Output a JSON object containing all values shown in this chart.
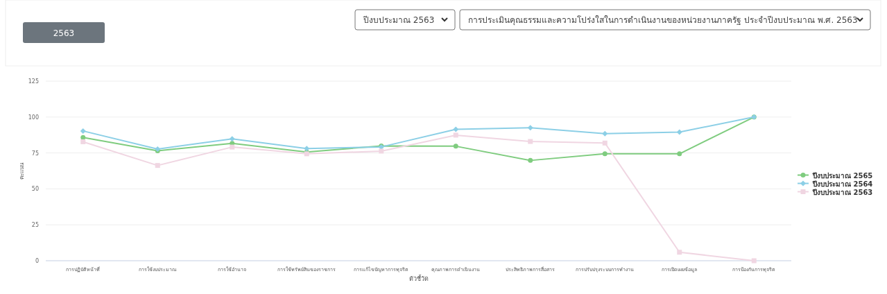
{
  "chart_data": {
    "type": "line",
    "xlabel": "ตัวชี้วัด",
    "ylabel": "คะแนน",
    "annotations": [
      "2563",
      "ปีงบประมาณ 2563",
      "การประเมินคุณธรรมและความโปร่งใสในการดำเนินงานของหน่วยงานภาครัฐ ประจำปีงบประมาณ พ.ศ. 2563"
    ],
    "categories": [
      "การปฏิบัติหน้าที่",
      "การใช้งบประมาณ",
      "การใช้อำนาจ",
      "การใช้ทรัพย์สินของราชการ",
      "การแก้ไขปัญหาการทุจริต",
      "คุณภาพการดำเนินงาน",
      "ประสิทธิภาพการสื่อสาร",
      "การปรับปรุงระบบการทำงาน",
      "การเปิดเผยข้อมูล",
      "การป้องกันการทุจริต"
    ],
    "series": [
      {
        "name": "ปีงบประมาณ 2565",
        "color": "#7fcc7f",
        "marker": "circle",
        "values": [
          85.8,
          76.5,
          81.7,
          75.7,
          79.9,
          79.7,
          69.8,
          74.4,
          74.4,
          100
        ]
      },
      {
        "name": "ปีงบประมาณ 2564",
        "color": "#8ccfe6",
        "marker": "diamond",
        "values": [
          90.3,
          77.7,
          84.8,
          78.1,
          79.2,
          91.5,
          92.5,
          88.4,
          89.5,
          100
        ]
      },
      {
        "name": "ปีงบประมาณ 2563",
        "color": "#f0d6e2",
        "marker": "square",
        "values": [
          82.8,
          66.3,
          79.1,
          74.4,
          76.3,
          87.4,
          83,
          81.9,
          5.9,
          0
        ]
      }
    ],
    "ylim": [
      0,
      125
    ],
    "yticks": [
      0,
      25,
      50,
      75,
      100,
      125
    ],
    "grid": "y",
    "legend": "right"
  }
}
